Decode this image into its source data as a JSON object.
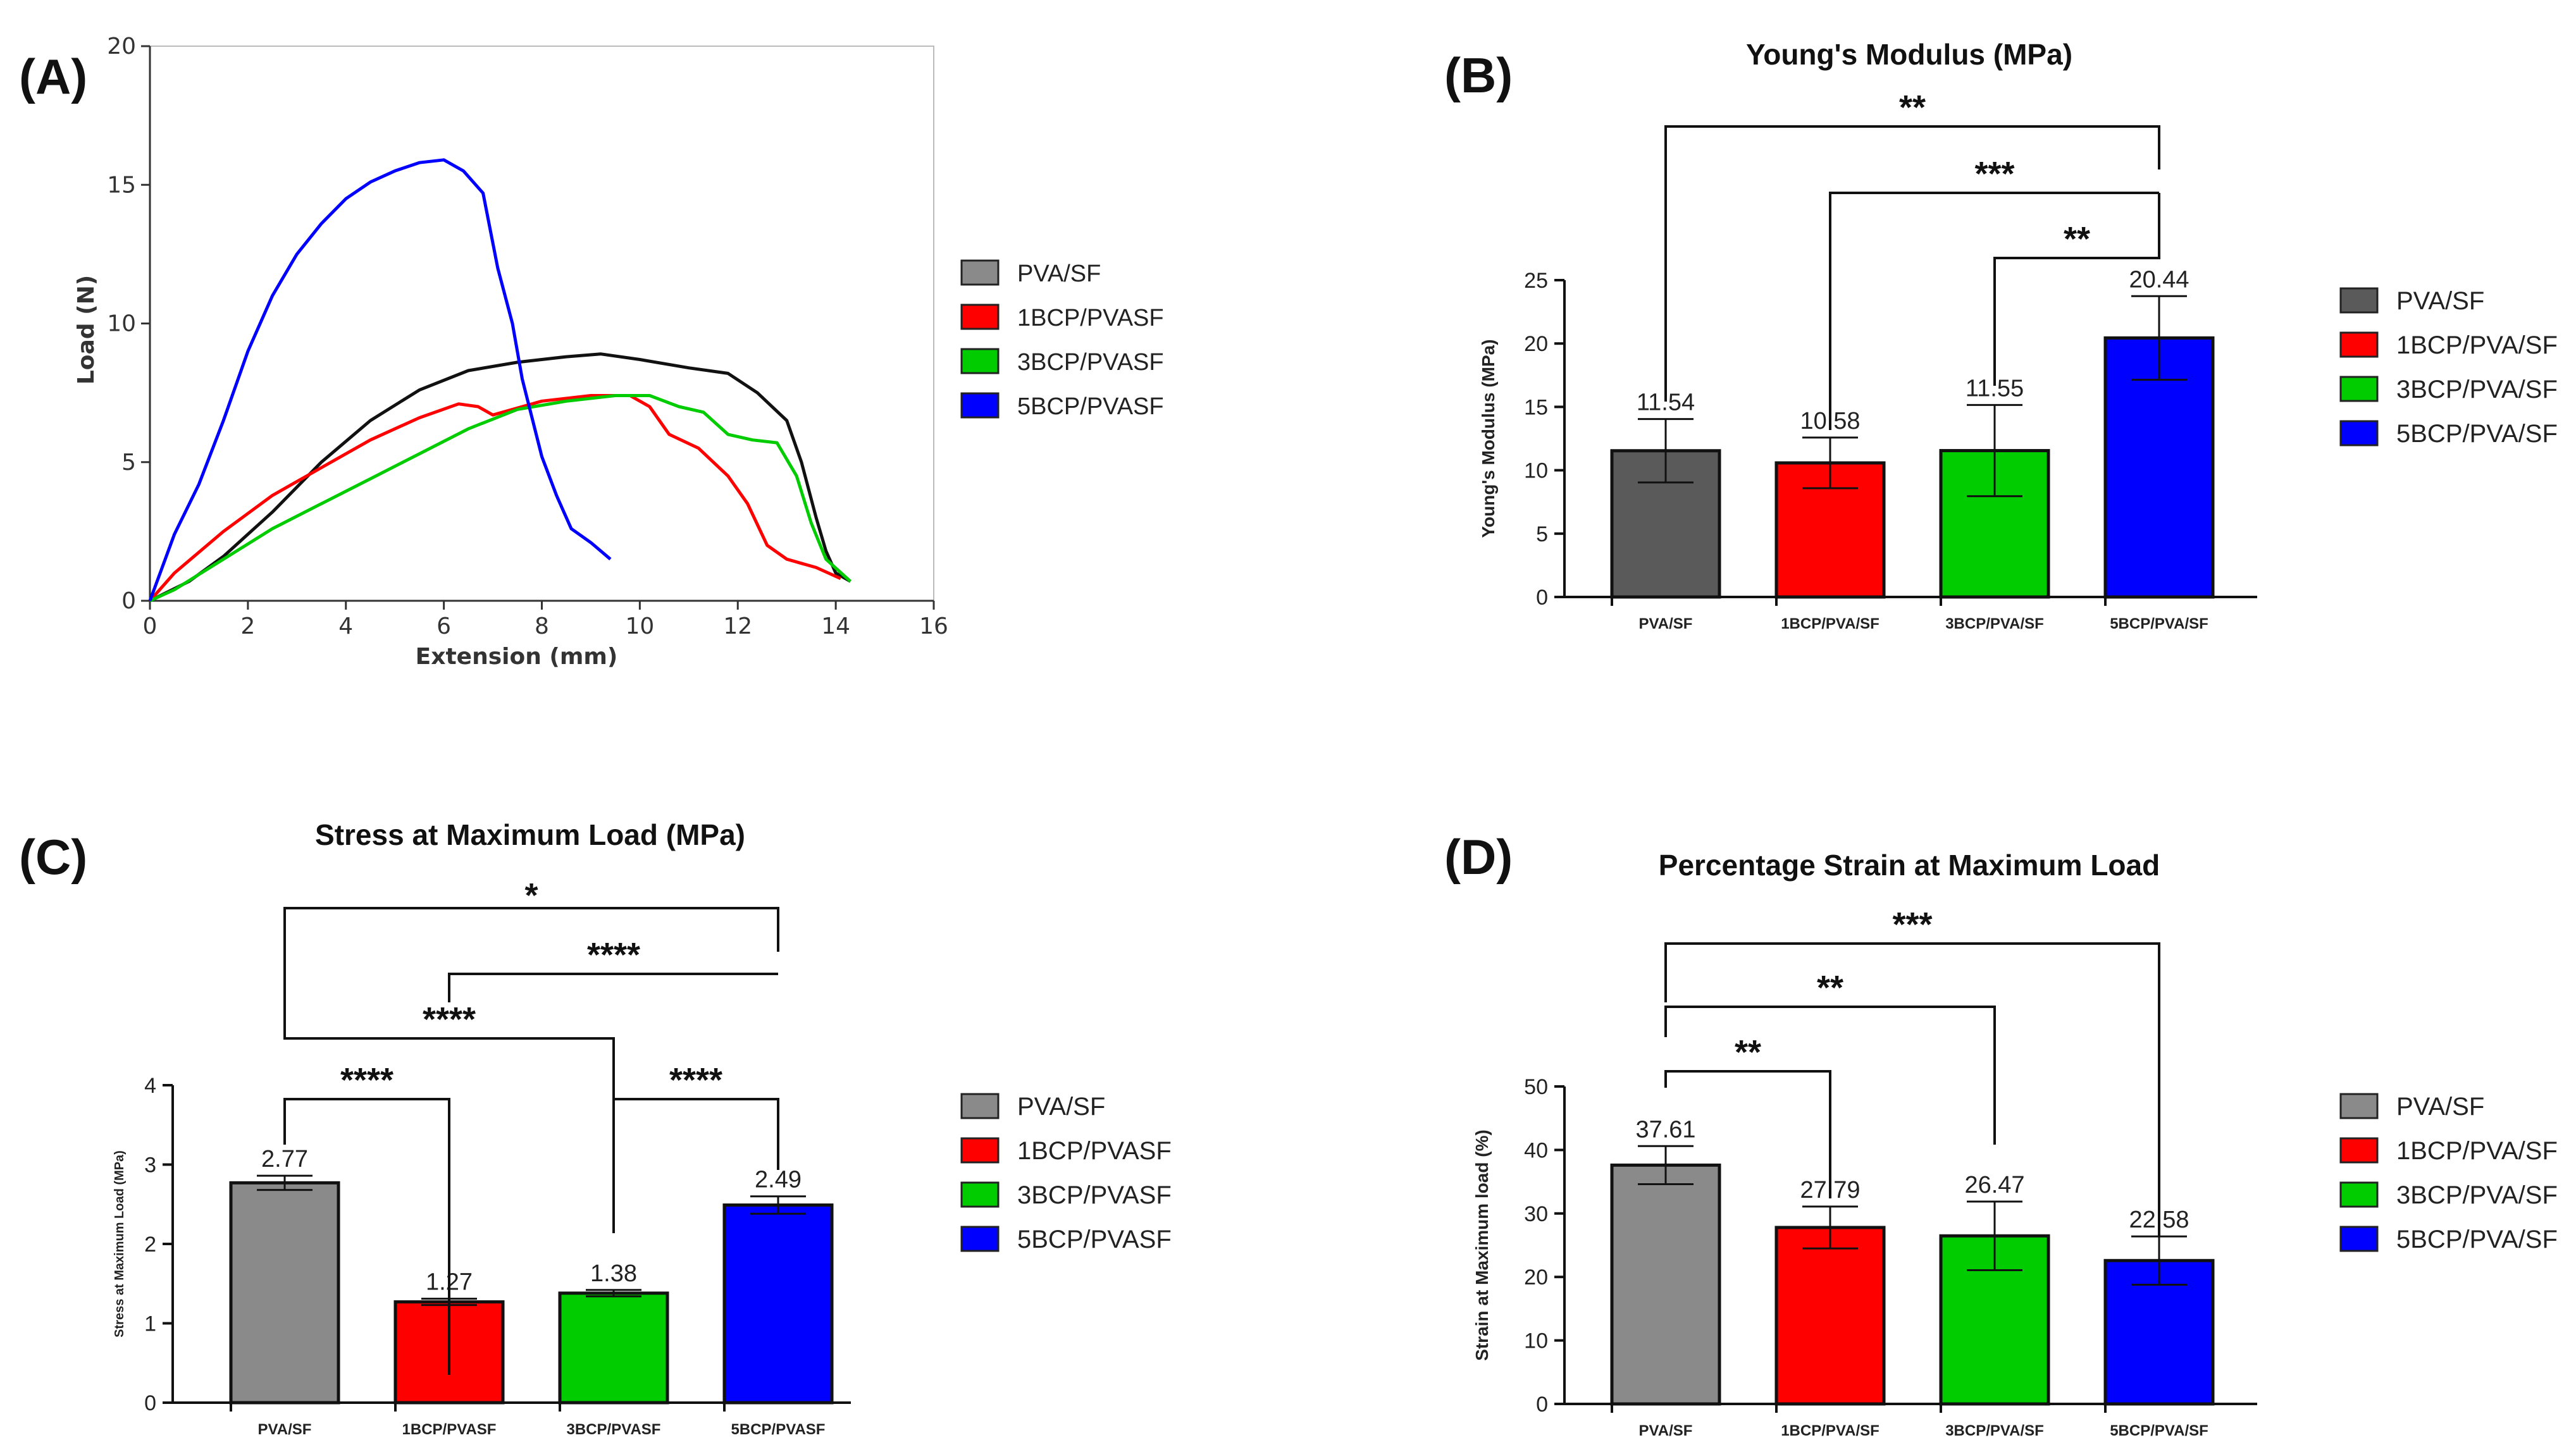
{
  "colors": {
    "PVA": "#8a8a8a",
    "PVA_B": "#5a5a5a",
    "1BCP": "#ff0000",
    "3BCP": "#00cc00",
    "5BCP": "#0000ff",
    "black": "#111111"
  },
  "chart_data": [
    {
      "panel": "(A)",
      "type": "line",
      "title": "",
      "xlabel": "Extension (mm)",
      "ylabel": "Load (N)",
      "xlim": [
        0,
        16
      ],
      "ylim": [
        0,
        20
      ],
      "xticks": [
        0,
        2,
        4,
        6,
        8,
        10,
        12,
        14,
        16
      ],
      "yticks": [
        0,
        5,
        10,
        15,
        20
      ],
      "series": [
        {
          "name": "PVA/SF",
          "color": "#111111",
          "legend_color": "#8a8a8a",
          "x": [
            0,
            0.8,
            1.5,
            2.5,
            3.5,
            4.5,
            5.5,
            6.5,
            7.5,
            8.5,
            9.2,
            10.0,
            11.0,
            11.8,
            12.4,
            13.0,
            13.3,
            13.6,
            13.8,
            14.0,
            14.3
          ],
          "y": [
            0,
            0.7,
            1.6,
            3.2,
            5.0,
            6.5,
            7.6,
            8.3,
            8.6,
            8.8,
            8.9,
            8.7,
            8.4,
            8.2,
            7.5,
            6.5,
            5.0,
            3.0,
            1.8,
            1.0,
            0.7
          ]
        },
        {
          "name": "1BCP/PVASF",
          "color": "#ff0000",
          "legend_color": "#ff0000",
          "x": [
            0,
            0.5,
            1.5,
            2.5,
            3.5,
            4.5,
            5.5,
            6.3,
            6.7,
            7.0,
            8.0,
            9.0,
            9.8,
            10.2,
            10.6,
            11.2,
            11.8,
            12.2,
            12.6,
            13.0,
            13.6,
            14.1
          ],
          "y": [
            0,
            1.0,
            2.5,
            3.8,
            4.8,
            5.8,
            6.6,
            7.1,
            7.0,
            6.7,
            7.2,
            7.4,
            7.4,
            7.0,
            6.0,
            5.5,
            4.5,
            3.5,
            2.0,
            1.5,
            1.2,
            0.8
          ]
        },
        {
          "name": "3BCP/PVASF",
          "color": "#00cc00",
          "legend_color": "#00cc00",
          "x": [
            0,
            0.5,
            1.5,
            2.5,
            3.5,
            4.5,
            5.5,
            6.5,
            7.5,
            8.5,
            9.5,
            10.2,
            10.8,
            11.3,
            11.8,
            12.3,
            12.8,
            13.2,
            13.5,
            13.8,
            14.3
          ],
          "y": [
            0,
            0.4,
            1.5,
            2.6,
            3.5,
            4.4,
            5.3,
            6.2,
            6.9,
            7.2,
            7.4,
            7.4,
            7.0,
            6.8,
            6.0,
            5.8,
            5.7,
            4.5,
            2.8,
            1.5,
            0.7
          ]
        },
        {
          "name": "5BCP/PVASF",
          "color": "#0000ff",
          "legend_color": "#0000ff",
          "x": [
            0,
            0.5,
            1.0,
            1.5,
            2.0,
            2.5,
            3.0,
            3.5,
            4.0,
            4.5,
            5.0,
            5.5,
            6.0,
            6.4,
            6.8,
            7.1,
            7.4,
            7.6,
            7.8,
            8.0,
            8.3,
            8.6,
            9.0,
            9.4
          ],
          "y": [
            0,
            2.4,
            4.2,
            6.5,
            9.0,
            11.0,
            12.5,
            13.6,
            14.5,
            15.1,
            15.5,
            15.8,
            15.9,
            15.5,
            14.7,
            12.0,
            10.0,
            8.0,
            6.6,
            5.2,
            3.8,
            2.6,
            2.1,
            1.5
          ]
        }
      ],
      "legend": [
        "PVA/SF",
        "1BCP/PVASF",
        "3BCP/PVASF",
        "5BCP/PVASF"
      ],
      "legend_position": "right"
    },
    {
      "panel": "(B)",
      "type": "bar",
      "title": "Young's Modulus (MPa)",
      "ylabel": "Young's Modulus (MPa)",
      "ylim": [
        0,
        25
      ],
      "yticks": [
        0,
        5,
        10,
        15,
        20,
        25
      ],
      "categories": [
        "PVA/SF",
        "1BCP/PVA/SF",
        "3BCP/PVA/SF",
        "5BCP/PVA/SF"
      ],
      "values": [
        11.54,
        10.58,
        11.55,
        20.44
      ],
      "value_labels": [
        "11.54",
        "10.58",
        "11.55",
        "20.44"
      ],
      "errors": [
        2.5,
        2.0,
        3.6,
        3.3
      ],
      "bar_colors": [
        "#5a5a5a",
        "#ff0000",
        "#00cc00",
        "#0000ff"
      ],
      "significance": [
        {
          "from": 0,
          "to": 3,
          "label": "**"
        },
        {
          "from": 1,
          "to": 3,
          "label": "***"
        },
        {
          "from": 2,
          "to": 3,
          "label": "**"
        }
      ],
      "legend": [
        "PVA/SF",
        "1BCP/PVA/SF",
        "3BCP/PVA/SF",
        "5BCP/PVA/SF"
      ],
      "legend_position": "right"
    },
    {
      "panel": "(C)",
      "type": "bar",
      "title": "Stress at Maximum Load (MPa)",
      "ylabel": "Stress at Maximum Load (MPa)",
      "ylim": [
        0,
        4
      ],
      "yticks": [
        0,
        1,
        2,
        3,
        4
      ],
      "categories": [
        "PVA/SF",
        "1BCP/PVASF",
        "3BCP/PVASF",
        "5BCP/PVASF"
      ],
      "values": [
        2.77,
        1.27,
        1.38,
        2.49
      ],
      "value_labels": [
        "2.77",
        "1.27",
        "1.38",
        "2.49"
      ],
      "errors": [
        0.09,
        0.04,
        0.04,
        0.11
      ],
      "bar_colors": [
        "#8a8a8a",
        "#ff0000",
        "#00cc00",
        "#0000ff"
      ],
      "significance": [
        {
          "from": 0,
          "to": 3,
          "label": "*"
        },
        {
          "from": 1,
          "to": 3,
          "label": "****"
        },
        {
          "from": 0,
          "to": 2,
          "label": "****"
        },
        {
          "from": 0,
          "to": 1,
          "label": "****"
        },
        {
          "from": 2,
          "to": 3,
          "label": "****"
        }
      ],
      "legend": [
        "PVA/SF",
        "1BCP/PVASF",
        "3BCP/PVASF",
        "5BCP/PVASF"
      ],
      "legend_position": "right"
    },
    {
      "panel": "(D)",
      "type": "bar",
      "title": "Percentage Strain at Maximum Load",
      "ylabel": "Strain at Maximum load (%)",
      "ylim": [
        0,
        50
      ],
      "yticks": [
        0,
        10,
        20,
        30,
        40,
        50
      ],
      "categories": [
        "PVA/SF",
        "1BCP/PVA/SF",
        "3BCP/PVA/SF",
        "5BCP/PVA/SF"
      ],
      "values": [
        37.61,
        27.79,
        26.47,
        22.58
      ],
      "value_labels": [
        "37.61",
        "27.79",
        "26.47",
        "22.58"
      ],
      "errors": [
        3.0,
        3.3,
        5.4,
        3.8
      ],
      "bar_colors": [
        "#8a8a8a",
        "#ff0000",
        "#00cc00",
        "#0000ff"
      ],
      "significance": [
        {
          "from": 0,
          "to": 3,
          "label": "***"
        },
        {
          "from": 0,
          "to": 2,
          "label": "**"
        },
        {
          "from": 0,
          "to": 1,
          "label": "**"
        }
      ],
      "legend": [
        "PVA/SF",
        "1BCP/PVA/SF",
        "3BCP/PVA/SF",
        "5BCP/PVA/SF"
      ],
      "legend_position": "right"
    }
  ]
}
